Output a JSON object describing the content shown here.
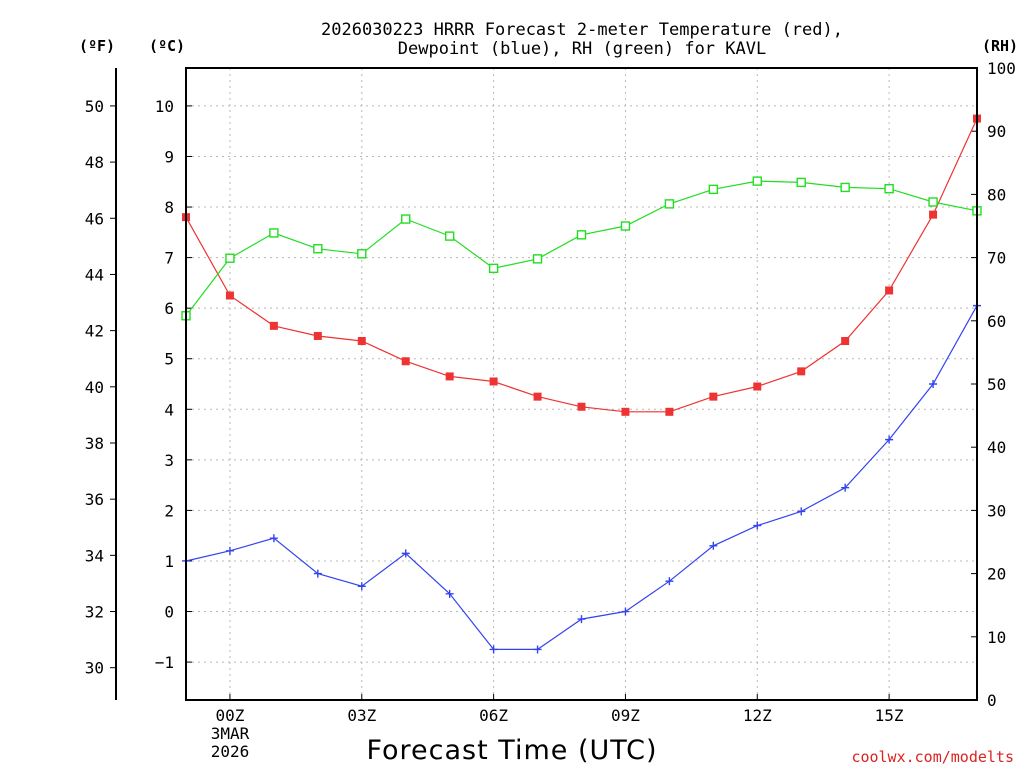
{
  "title_line1": "2026030223 HRRR Forecast 2-meter Temperature (red),",
  "title_line2": "Dewpoint (blue), RH (green) for KAVL",
  "units": {
    "f": "(ºF)",
    "c": "(ºC)",
    "rh": "(RH)"
  },
  "xlabel": "Forecast Time (UTC)",
  "credit": "coolwx.com/modelts",
  "date_label": [
    "3MAR",
    "2026"
  ],
  "chart_data": {
    "type": "line",
    "title": "2026030223 HRRR Forecast 2-meter Temperature (red), Dewpoint (blue), RH (green) for KAVL",
    "xlabel": "Forecast Time (UTC)",
    "x_hours": [
      -1,
      0,
      1,
      2,
      3,
      4,
      5,
      6,
      7,
      8,
      9,
      10,
      11,
      12,
      13,
      14,
      15,
      16,
      17
    ],
    "xlim": [
      -1,
      17
    ],
    "x_ticks": [
      {
        "hour": 0,
        "label": "00Z"
      },
      {
        "hour": 3,
        "label": "03Z"
      },
      {
        "hour": 6,
        "label": "06Z"
      },
      {
        "hour": 9,
        "label": "09Z"
      },
      {
        "hour": 12,
        "label": "12Z"
      },
      {
        "hour": 15,
        "label": "15Z"
      }
    ],
    "axes": {
      "celsius": {
        "label": "(ºC)",
        "range": [
          -1.75,
          10.75
        ],
        "ticks": [
          "10",
          "9",
          "8",
          "7",
          "6",
          "5",
          "4",
          "3",
          "2",
          "1",
          "0",
          "−1"
        ]
      },
      "fahrenheit": {
        "label": "(ºF)",
        "range": [
          28.85,
          51.35
        ],
        "ticks": [
          "50",
          "48",
          "46",
          "44",
          "42",
          "40",
          "38",
          "36",
          "34",
          "32",
          "30"
        ]
      },
      "rh": {
        "label": "(RH)",
        "range": [
          0,
          100
        ],
        "ticks": [
          "100",
          "90",
          "80",
          "70",
          "60",
          "50",
          "40",
          "30",
          "20",
          "10",
          "0"
        ]
      }
    },
    "series": [
      {
        "name": "Temperature",
        "color": "#ee3333",
        "axis": "celsius",
        "marker": "filled-square",
        "values": [
          7.8,
          6.25,
          5.65,
          5.45,
          5.35,
          4.95,
          4.65,
          4.55,
          4.25,
          4.05,
          3.95,
          3.95,
          4.25,
          4.45,
          4.75,
          5.35,
          6.35,
          7.85,
          9.75
        ]
      },
      {
        "name": "Dewpoint",
        "color": "#3344ee",
        "axis": "celsius",
        "marker": "plus",
        "values": [
          1.0,
          1.2,
          1.45,
          0.75,
          0.5,
          1.15,
          0.35,
          -0.75,
          -0.75,
          -0.15,
          0.0,
          0.6,
          1.3,
          1.7,
          1.98,
          2.45,
          3.4,
          4.5,
          6.05
        ]
      },
      {
        "name": "RH",
        "color": "#22dd22",
        "axis": "rh",
        "marker": "open-square",
        "values": [
          60.8,
          69.9,
          73.9,
          71.4,
          70.6,
          76.1,
          73.4,
          68.3,
          69.8,
          73.6,
          75.0,
          78.5,
          80.8,
          82.1,
          81.9,
          81.1,
          80.9,
          78.8,
          77.4
        ]
      }
    ]
  }
}
